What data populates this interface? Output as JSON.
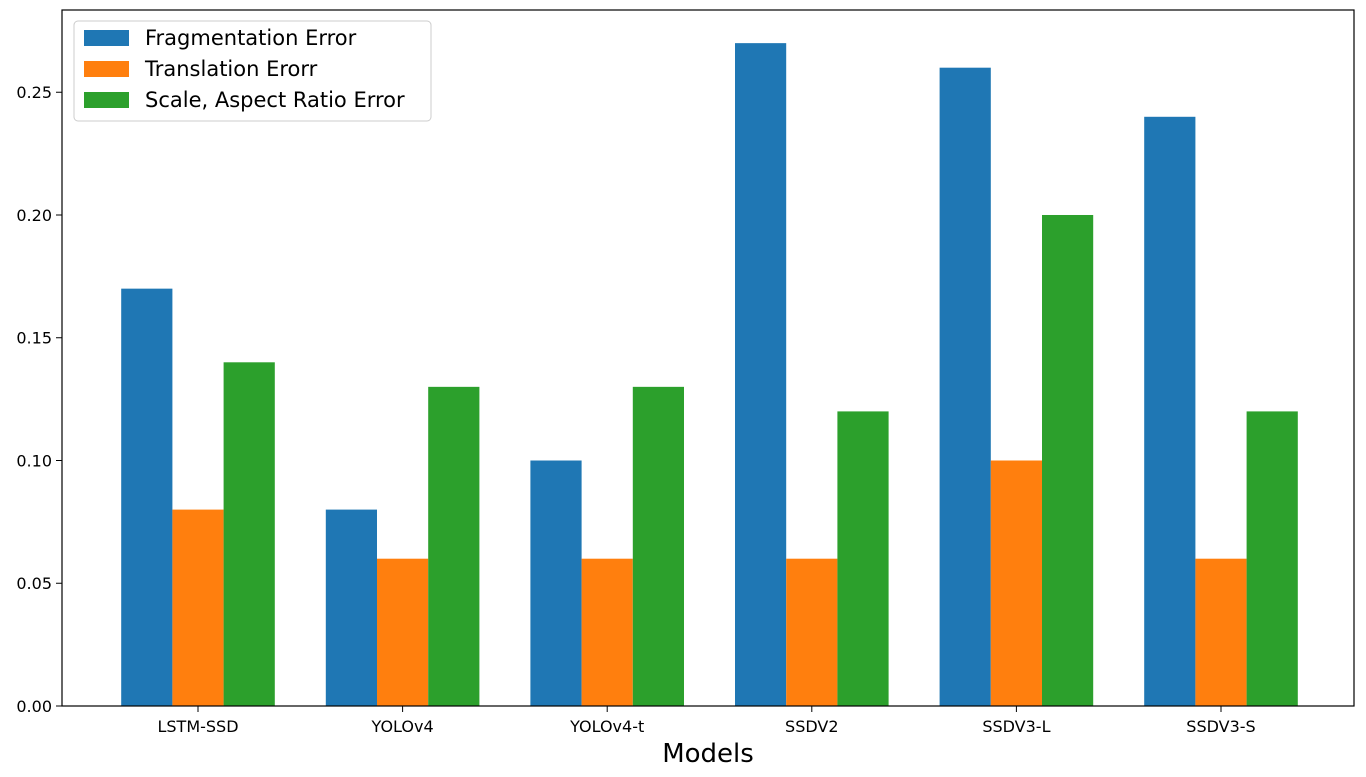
{
  "chart_data": {
    "type": "bar",
    "title": "",
    "xlabel": "Models",
    "ylabel": "",
    "categories": [
      "LSTM-SSD",
      "YOLOv4",
      "YOLOv4-t",
      "SSDV2",
      "SSDV3-L",
      "SSDV3-S"
    ],
    "series": [
      {
        "name": "Fragmentation Error",
        "color": "#1f77b4",
        "values": [
          0.17,
          0.08,
          0.1,
          0.27,
          0.26,
          0.24
        ]
      },
      {
        "name": "Translation Erorr",
        "color": "#ff7f0e",
        "values": [
          0.08,
          0.06,
          0.06,
          0.06,
          0.1,
          0.06
        ]
      },
      {
        "name": "Scale, Aspect Ratio Error",
        "color": "#2ca02c",
        "values": [
          0.14,
          0.13,
          0.13,
          0.12,
          0.2,
          0.12
        ]
      }
    ],
    "yticks": [
      "0.00",
      "0.05",
      "0.10",
      "0.15",
      "0.20",
      "0.25"
    ],
    "ylim": [
      0,
      0.2835
    ],
    "grid": false,
    "legend_position": "top-left"
  }
}
